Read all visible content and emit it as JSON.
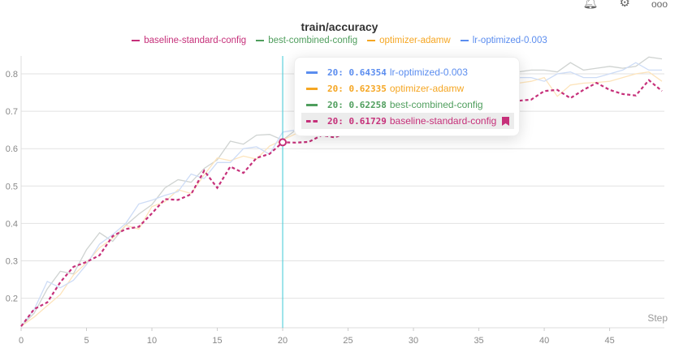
{
  "header_icons": [
    "bell-icon",
    "gear-icon",
    "more-icon"
  ],
  "tooltip": {
    "rows": [
      {
        "step": "20",
        "value": "0.64354",
        "name": "lr-optimized-0.003",
        "color": "#5b8def",
        "dashed": false,
        "highlight": false
      },
      {
        "step": "20",
        "value": "0.62335",
        "name": "optimizer-adamw",
        "color": "#f5a623",
        "dashed": false,
        "highlight": false
      },
      {
        "step": "20",
        "value": "0.62258",
        "name": "best-combined-config",
        "color": "#4f9e5d",
        "dashed": false,
        "highlight": false
      },
      {
        "step": "20",
        "value": "0.61729",
        "name": "baseline-standard-config",
        "color": "#c6307a",
        "dashed": true,
        "highlight": true
      }
    ]
  },
  "chart_data": {
    "type": "line",
    "title": "train/accuracy",
    "xlabel": "Step",
    "ylabel": "",
    "xlim": [
      0,
      49
    ],
    "ylim": [
      0.125,
      0.85
    ],
    "xticks": [
      0,
      5,
      10,
      15,
      20,
      25,
      30,
      35,
      40,
      45
    ],
    "yticks": [
      0.2,
      0.3,
      0.4,
      0.5,
      0.6,
      0.7,
      0.8
    ],
    "grid": true,
    "legend_position": "top",
    "hover_step": 20,
    "series": [
      {
        "name": "baseline-standard-config",
        "color": "#c6307a",
        "faded_color": "#c6307a",
        "dashed": true,
        "highlighted": true,
        "values": [
          0.125,
          0.171,
          0.189,
          0.243,
          0.284,
          0.297,
          0.315,
          0.366,
          0.385,
          0.391,
          0.427,
          0.465,
          0.463,
          0.478,
          0.541,
          0.495,
          0.552,
          0.535,
          0.575,
          0.586,
          0.617,
          0.616,
          0.618,
          0.636,
          0.63,
          0.645,
          0.655,
          0.66,
          0.67,
          0.675,
          0.685,
          0.69,
          0.7,
          0.705,
          0.71,
          0.715,
          0.72,
          0.725,
          0.728,
          0.731,
          0.754,
          0.757,
          0.735,
          0.757,
          0.776,
          0.757,
          0.746,
          0.742,
          0.783,
          0.754
        ]
      },
      {
        "name": "best-combined-config",
        "color": "#4f9e5d",
        "faded_color": "#cfd3d1",
        "dashed": false,
        "highlighted": false,
        "values": [
          0.125,
          0.16,
          0.225,
          0.272,
          0.265,
          0.33,
          0.375,
          0.352,
          0.395,
          0.425,
          0.45,
          0.495,
          0.517,
          0.51,
          0.547,
          0.57,
          0.62,
          0.612,
          0.636,
          0.638,
          0.623,
          0.65,
          0.66,
          0.67,
          0.68,
          0.69,
          0.7,
          0.715,
          0.725,
          0.735,
          0.745,
          0.755,
          0.765,
          0.775,
          0.78,
          0.79,
          0.795,
          0.8,
          0.805,
          0.81,
          0.81,
          0.805,
          0.83,
          0.81,
          0.815,
          0.82,
          0.815,
          0.82,
          0.845,
          0.84
        ]
      },
      {
        "name": "optimizer-adamw",
        "color": "#f5a623",
        "faded_color": "#fde4bb",
        "dashed": false,
        "highlighted": false,
        "values": [
          0.125,
          0.15,
          0.18,
          0.21,
          0.262,
          0.295,
          0.335,
          0.36,
          0.395,
          0.385,
          0.445,
          0.458,
          0.49,
          0.48,
          0.53,
          0.575,
          0.568,
          0.58,
          0.572,
          0.607,
          0.623,
          0.64,
          0.65,
          0.66,
          0.67,
          0.675,
          0.685,
          0.695,
          0.7,
          0.71,
          0.72,
          0.73,
          0.74,
          0.745,
          0.75,
          0.755,
          0.76,
          0.77,
          0.775,
          0.78,
          0.79,
          0.74,
          0.77,
          0.775,
          0.777,
          0.78,
          0.79,
          0.8,
          0.805,
          0.78
        ]
      },
      {
        "name": "lr-optimized-0.003",
        "color": "#5b8def",
        "faded_color": "#cddcf6",
        "dashed": false,
        "highlighted": false,
        "values": [
          0.125,
          0.17,
          0.245,
          0.228,
          0.248,
          0.29,
          0.345,
          0.37,
          0.4,
          0.452,
          0.462,
          0.475,
          0.485,
          0.532,
          0.52,
          0.563,
          0.563,
          0.6,
          0.605,
          0.585,
          0.644,
          0.65,
          0.66,
          0.67,
          0.68,
          0.69,
          0.7,
          0.71,
          0.72,
          0.73,
          0.74,
          0.75,
          0.755,
          0.76,
          0.77,
          0.775,
          0.78,
          0.785,
          0.79,
          0.79,
          0.78,
          0.8,
          0.805,
          0.79,
          0.79,
          0.8,
          0.81,
          0.83,
          0.81,
          0.81
        ]
      }
    ]
  }
}
